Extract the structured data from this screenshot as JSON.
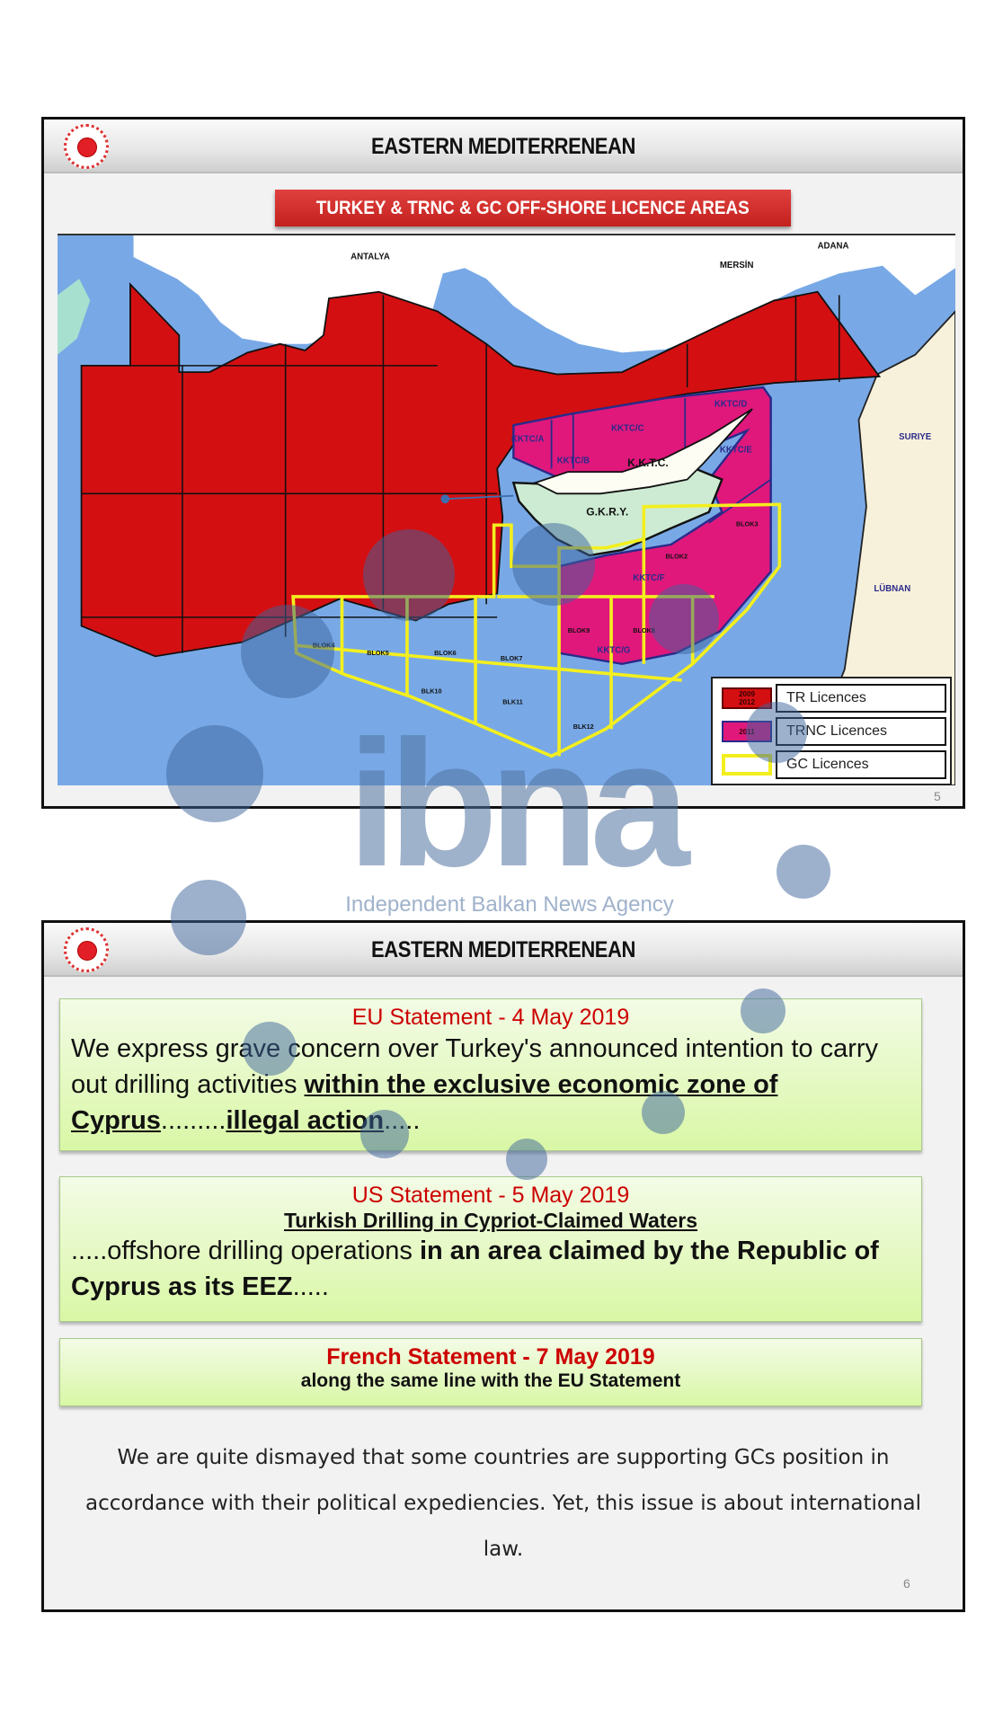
{
  "slide1": {
    "header": "EASTERN MEDITERRENEAN",
    "banner": "TURKEY & TRNC & GC OFF-SHORE LICENCE AREAS",
    "map": {
      "places": [
        "ANTALYA",
        "MERSİN",
        "ADANA",
        "SURIYE",
        "LÜBNAN",
        "K.K.T.C.",
        "G.K.R.Y."
      ],
      "trnc_blocks": [
        "KKTC/A",
        "KKTC/B",
        "KKTC/C",
        "KKTC/D",
        "KKTC/E",
        "KKTC/F",
        "KKTC/G"
      ],
      "gc_blocks": [
        "BLOK4",
        "BLOK5",
        "BLOK6",
        "BLOK7",
        "BLK10",
        "BLK11",
        "BLK12",
        "BLOK3",
        "BLOK2",
        "BLOK9",
        "BLOK8"
      ],
      "colors": {
        "sea": "#78a9e6",
        "tr": "#d40f12",
        "trnc": "#e0187c",
        "gc": "#f3ef1e",
        "land": "#ffffff",
        "cyprus_south": "#cdebd2"
      }
    },
    "legend": [
      {
        "label": "TR Licences",
        "swatch_text": "2009 2012",
        "color": "#d40f12"
      },
      {
        "label": "TRNC Licences",
        "swatch_text": "2011",
        "color": "#e0187c"
      },
      {
        "label": "GC Licences",
        "swatch_text": "",
        "color": "#f3ef1e"
      }
    ],
    "page": "5"
  },
  "watermark": {
    "logo": "ibna",
    "tagline": "Independent Balkan News Agency"
  },
  "slide2": {
    "header": "EASTERN MEDITERRENEAN",
    "eu": {
      "title": "EU Statement - 4 May 2019",
      "t1": "We express grave concern over Turkey's announced intention to carry out drilling activities ",
      "b1": "within the exclusive economic zone of Cyprus",
      "t2": ".........",
      "b2": "illegal action",
      "t3": "....."
    },
    "us": {
      "title": "US Statement  - 5 May 2019",
      "subtitle": "Turkish Drilling in Cypriot-Claimed Waters",
      "t1": ".....offshore drilling operations ",
      "b1": "in an area claimed by the Republic of Cyprus as its EEZ",
      "t2": "....."
    },
    "fr": {
      "title": "French Statement  - 7 May 2019",
      "text": "along the same line with the EU Statement"
    },
    "paragraph": "We are quite dismayed that some countries are supporting GCs position in accordance with their political expediencies. Yet, this issue is about international law.",
    "page": "6"
  }
}
